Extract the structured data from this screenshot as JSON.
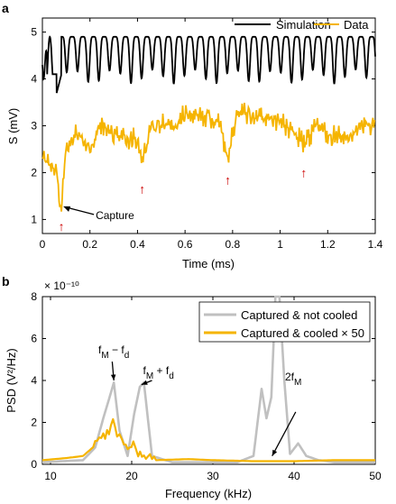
{
  "chart_data": [
    {
      "panel_label": "a",
      "type": "line",
      "xlabel": "Time (ms)",
      "ylabel": "S (mV)",
      "xlim": [
        0,
        1.4
      ],
      "ylim": [
        0.7,
        5.3
      ],
      "xticks": [
        "0",
        "0.2",
        "0.4",
        "0.6",
        "0.8",
        "1",
        "1.2",
        "1.4"
      ],
      "yticks": [
        "1",
        "2",
        "3",
        "4",
        "5"
      ],
      "legend": {
        "placement": "top",
        "entries": [
          "Simulation",
          "Data"
        ]
      },
      "series": [
        {
          "name": "Simulation",
          "color": "#000000",
          "description_values": {
            "baseline_top": 4.9,
            "oscillation_trough": 3.9,
            "oscillation_period_ms": 0.045,
            "settled_after_ms": 0.08
          }
        },
        {
          "name": "Data",
          "color": "#f5b400",
          "x": [
            0,
            0.03,
            0.06,
            0.08,
            0.1,
            0.15,
            0.2,
            0.25,
            0.3,
            0.35,
            0.4,
            0.42,
            0.45,
            0.5,
            0.55,
            0.6,
            0.65,
            0.7,
            0.75,
            0.78,
            0.82,
            0.9,
            1.0,
            1.05,
            1.1,
            1.15,
            1.2,
            1.3,
            1.4
          ],
          "y": [
            2.3,
            2.2,
            2.0,
            1.2,
            2.6,
            2.9,
            2.5,
            3.0,
            2.9,
            2.7,
            2.7,
            2.2,
            2.9,
            3.1,
            3.0,
            3.2,
            3.3,
            3.2,
            3.0,
            2.3,
            3.3,
            3.2,
            3.1,
            2.9,
            2.6,
            3.0,
            2.8,
            2.8,
            3.1
          ]
        }
      ],
      "annotations": [
        {
          "text": "Capture",
          "x": 0.08,
          "y": 1.3
        },
        {
          "text": "↑",
          "x": 0.08,
          "y": 0.85,
          "color": "#cc0000"
        },
        {
          "text": "↑",
          "x": 0.42,
          "y": 1.65,
          "color": "#cc0000"
        },
        {
          "text": "↑",
          "x": 0.78,
          "y": 1.85,
          "color": "#cc0000"
        },
        {
          "text": "↑",
          "x": 1.1,
          "y": 2.0,
          "color": "#cc0000"
        }
      ]
    },
    {
      "panel_label": "b",
      "type": "line",
      "xlabel": "Frequency (kHz)",
      "ylabel": "PSD (V²/Hz)",
      "y_multiplier": "× 10⁻¹⁰",
      "xlim": [
        9,
        50
      ],
      "ylim": [
        0,
        8
      ],
      "xticks": [
        "10",
        "20",
        "30",
        "40",
        "50"
      ],
      "yticks": [
        "0",
        "2",
        "4",
        "6",
        "8"
      ],
      "legend": {
        "placement": "top-right",
        "entries": [
          "Captured & not cooled",
          "Captured & cooled × 50"
        ]
      },
      "series": [
        {
          "name": "Captured & not cooled",
          "color": "#c0c0c0",
          "x": [
            9,
            14,
            15.5,
            16.5,
            17.2,
            17.8,
            18.5,
            19.5,
            20.3,
            21.0,
            21.5,
            22.5,
            25,
            30,
            33,
            35,
            36.0,
            36.6,
            37.2,
            37.7,
            38.2,
            38.8,
            39.5,
            40.5,
            41.5,
            43,
            45,
            50
          ],
          "y": [
            0.1,
            0.2,
            0.8,
            2.2,
            3.1,
            3.9,
            1.6,
            0.4,
            2.4,
            3.7,
            3.9,
            0.4,
            0.1,
            0.1,
            0.1,
            0.4,
            3.6,
            2.2,
            3.2,
            8.0,
            8.0,
            4.0,
            0.5,
            1.0,
            0.4,
            0.2,
            0.1,
            0.1
          ]
        },
        {
          "name": "Captured & cooled × 50",
          "color": "#f5b400",
          "x": [
            9,
            12,
            14,
            15.5,
            16.5,
            17.2,
            17.7,
            18.2,
            18.8,
            19.5,
            20.2,
            20.8,
            21.5,
            23,
            27,
            30,
            35,
            40,
            45,
            50
          ],
          "y": [
            0.2,
            0.3,
            0.4,
            0.9,
            1.3,
            1.5,
            2.3,
            1.1,
            1.3,
            0.7,
            0.9,
            0.6,
            0.3,
            0.2,
            0.25,
            0.2,
            0.15,
            0.15,
            0.2,
            0.2
          ]
        }
      ],
      "annotations": [
        {
          "text": "f",
          "sub": "M",
          "mid": " − f",
          "sub2": "d",
          "x": 17.0,
          "y": 5.3
        },
        {
          "text": "f",
          "sub": "M",
          "mid": " + f",
          "sub2": "d",
          "x": 22.5,
          "y": 4.3
        },
        {
          "text": "2f",
          "sub": "M",
          "x": 40.0,
          "y": 4.0
        }
      ]
    }
  ]
}
